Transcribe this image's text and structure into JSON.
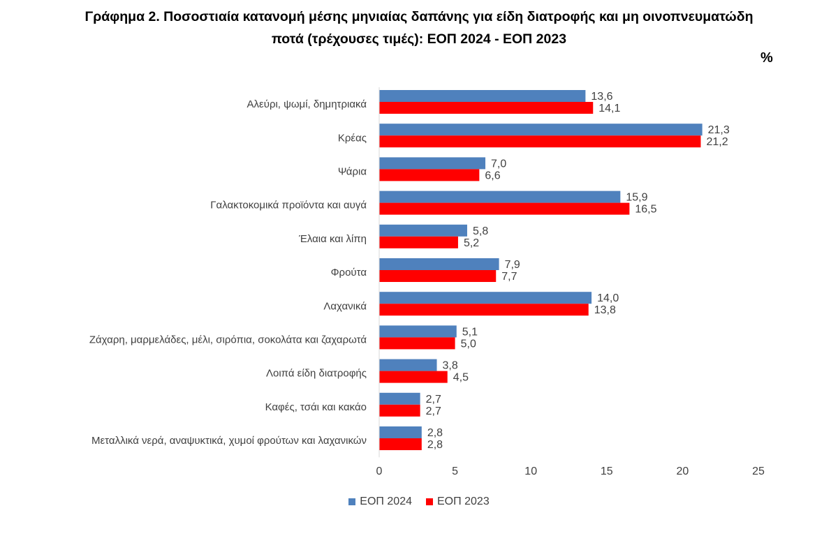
{
  "title": {
    "line1": "Γράφημα 2. Ποσοστιαία κατανομή μέσης μηνιαίας δαπάνης για είδη διατροφής και μη οινοπνευματώδη",
    "line2": "ποτά (τρέχουσες τιμές): ΕΟΠ 2024 - ΕΟΠ 2023"
  },
  "unit_label": "%",
  "chart_data": {
    "type": "bar",
    "orientation": "horizontal",
    "categories": [
      "Αλεύρι, ψωμί, δημητριακά",
      "Κρέας",
      "Ψάρια",
      "Γαλακτοκομικά προϊόντα και αυγά",
      "Έλαια και λίπη",
      "Φρούτα",
      "Λαχανικά",
      "Ζάχαρη, μαρμελάδες, μέλι, σιρόπια, σοκολάτα και ζαχαρωτά",
      "Λοιπά είδη διατροφής",
      "Καφές, τσάι και κακάο",
      "Μεταλλικά νερά, αναψυκτικά, χυμοί φρούτων και λαχανικών"
    ],
    "series": [
      {
        "name": "ΕΟΠ 2024",
        "color": "#4F81BD",
        "values": [
          13.6,
          21.3,
          7.0,
          15.9,
          5.8,
          7.9,
          14.0,
          5.1,
          3.8,
          2.7,
          2.8
        ],
        "labels": [
          "13,6",
          "21,3",
          "7,0",
          "15,9",
          "5,8",
          "7,9",
          "14,0",
          "5,1",
          "3,8",
          "2,7",
          "2,8"
        ]
      },
      {
        "name": "ΕΟΠ 2023",
        "color": "#FF0000",
        "values": [
          14.1,
          21.2,
          6.6,
          16.5,
          5.2,
          7.7,
          13.8,
          5.0,
          4.5,
          2.7,
          2.8
        ],
        "labels": [
          "14,1",
          "21,2",
          "6,6",
          "16,5",
          "5,2",
          "7,7",
          "13,8",
          "5,0",
          "4,5",
          "2,7",
          "2,8"
        ]
      }
    ],
    "xlim": [
      0,
      25
    ],
    "xticks": [
      0,
      5,
      10,
      15,
      20,
      25
    ],
    "grid": false,
    "legend_position": "bottom"
  }
}
